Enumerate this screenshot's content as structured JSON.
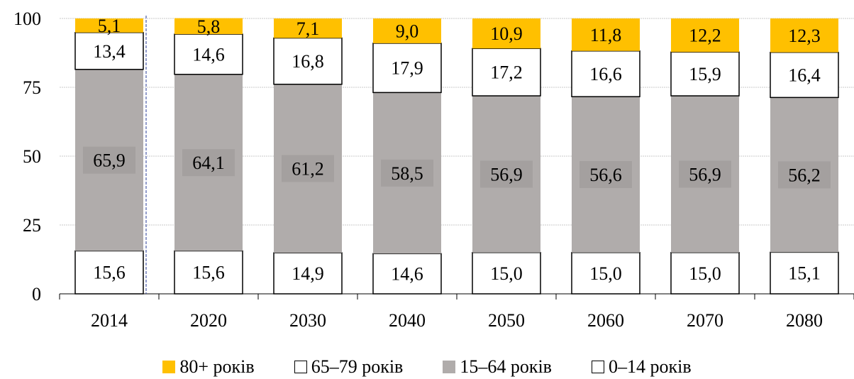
{
  "chart_data": {
    "type": "bar",
    "stacked": true,
    "categories": [
      "2014",
      "2020",
      "2030",
      "2040",
      "2050",
      "2060",
      "2070",
      "2080"
    ],
    "series": [
      {
        "name": "0–14 років",
        "color": "#ffffff",
        "values": [
          "15,6",
          "15,6",
          "14,9",
          "14,6",
          "15,0",
          "15,0",
          "15,0",
          "15,1"
        ],
        "numbers": [
          15.6,
          15.6,
          14.9,
          14.6,
          15.0,
          15.0,
          15.0,
          15.1
        ]
      },
      {
        "name": "15–64 років",
        "color": "#b0acab",
        "values": [
          "65,9",
          "64,1",
          "61,2",
          "58,5",
          "56,9",
          "56,6",
          "56,9",
          "56,2"
        ],
        "numbers": [
          65.9,
          64.1,
          61.2,
          58.5,
          56.9,
          56.6,
          56.9,
          56.2
        ]
      },
      {
        "name": "65–79 років",
        "color": "#ffffff",
        "values": [
          "13,4",
          "14,6",
          "16,8",
          "17,9",
          "17,2",
          "16,6",
          "15,9",
          "16,4"
        ],
        "numbers": [
          13.4,
          14.6,
          16.8,
          17.9,
          17.2,
          16.6,
          15.9,
          16.4
        ]
      },
      {
        "name": "80+ років",
        "color": "#ffc000",
        "values": [
          "5,1",
          "5,8",
          "7,1",
          "9,0",
          "10,9",
          "11,8",
          "12,2",
          "12,3"
        ],
        "numbers": [
          5.1,
          5.8,
          7.1,
          9.0,
          10.9,
          11.8,
          12.2,
          12.3
        ]
      }
    ],
    "ylim": [
      0,
      100
    ],
    "yticks": [
      "0",
      "25",
      "50",
      "75",
      "100"
    ],
    "grid": true,
    "legend_position": "bottom",
    "legend_order": [
      "80+ років",
      "65–79 років",
      "15–64 років",
      "0–14 років"
    ]
  }
}
